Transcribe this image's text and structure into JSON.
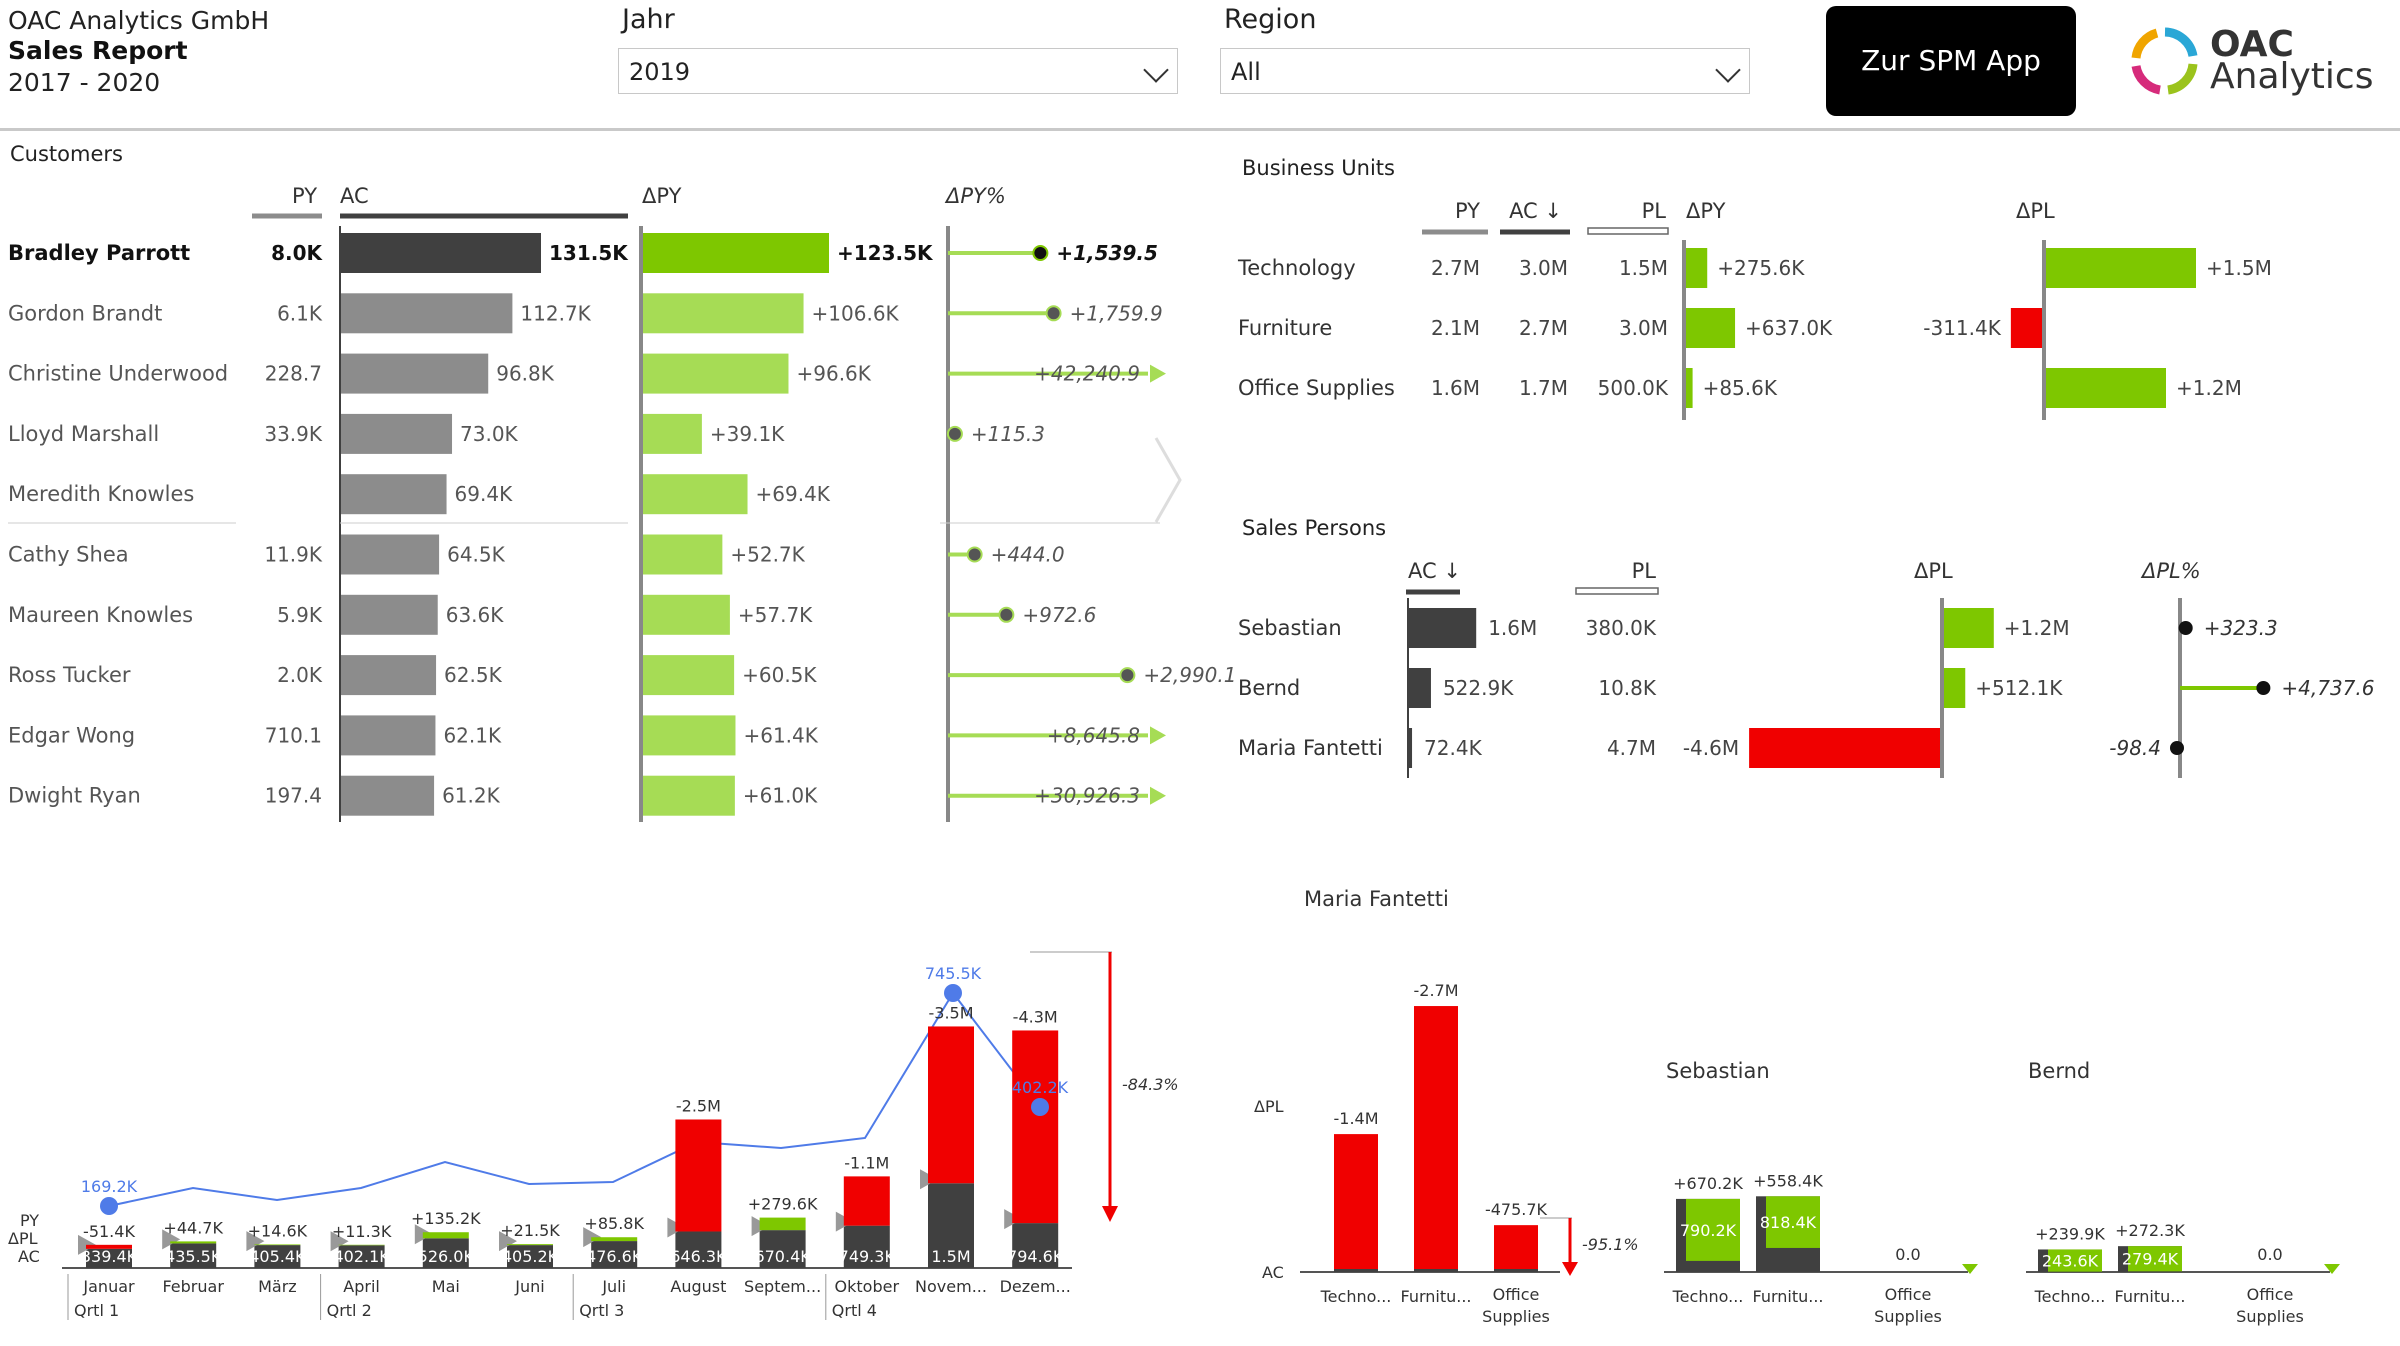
{
  "header": {
    "company": "OAC Analytics GmbH",
    "report": "Sales Report",
    "years": "2017 - 2020",
    "button": "Zur SPM App",
    "logo_line1": "OAC",
    "logo_line2": "Analytics"
  },
  "filters": {
    "jahr": {
      "label": "Jahr",
      "value": "2019"
    },
    "region": {
      "label": "Region",
      "value": "All"
    }
  },
  "colors": {
    "ac": "#404040",
    "py": "#8c8c8c",
    "good": "#7ec700",
    "good_light": "#a6dc55",
    "bad": "#f00000",
    "marker": "#4f7be8"
  },
  "customers": {
    "title": "Customers",
    "headers": {
      "py": "PY",
      "ac": "AC",
      "dpy": "ΔPY",
      "dpypct": "ΔPY%"
    },
    "rows": [
      {
        "name": "Bradley Parrott",
        "py": "8.0K",
        "ac": 131.5,
        "ac_label": "131.5K",
        "dpy": 123.5,
        "dpy_label": "+123.5K",
        "pct": 1539.5,
        "pct_label": "+1,539.5",
        "bold": true
      },
      {
        "name": "Gordon Brandt",
        "py": "6.1K",
        "ac": 112.7,
        "ac_label": "112.7K",
        "dpy": 106.6,
        "dpy_label": "+106.6K",
        "pct": 1759.9,
        "pct_label": "+1,759.9"
      },
      {
        "name": "Christine Underwood",
        "py": "228.7",
        "ac": 96.8,
        "ac_label": "96.8K",
        "dpy": 96.6,
        "dpy_label": "+96.6K",
        "pct": 42240.9,
        "pct_label": "+42,240.9"
      },
      {
        "name": "Lloyd Marshall",
        "py": "33.9K",
        "ac": 73.0,
        "ac_label": "73.0K",
        "dpy": 39.1,
        "dpy_label": "+39.1K",
        "pct": 115.3,
        "pct_label": "+115.3"
      },
      {
        "name": "Meredith Knowles",
        "py": "",
        "ac": 69.4,
        "ac_label": "69.4K",
        "dpy": 69.4,
        "dpy_label": "+69.4K",
        "pct": null,
        "pct_label": ""
      },
      {
        "name": "Cathy Shea",
        "py": "11.9K",
        "ac": 64.5,
        "ac_label": "64.5K",
        "dpy": 52.7,
        "dpy_label": "+52.7K",
        "pct": 444.0,
        "pct_label": "+444.0"
      },
      {
        "name": "Maureen Knowles",
        "py": "5.9K",
        "ac": 63.6,
        "ac_label": "63.6K",
        "dpy": 57.7,
        "dpy_label": "+57.7K",
        "pct": 972.6,
        "pct_label": "+972.6"
      },
      {
        "name": "Ross Tucker",
        "py": "2.0K",
        "ac": 62.5,
        "ac_label": "62.5K",
        "dpy": 60.5,
        "dpy_label": "+60.5K",
        "pct": 2990.1,
        "pct_label": "+2,990.1"
      },
      {
        "name": "Edgar Wong",
        "py": "710.1",
        "ac": 62.1,
        "ac_label": "62.1K",
        "dpy": 61.4,
        "dpy_label": "+61.4K",
        "pct": 8645.8,
        "pct_label": "+8,645.8"
      },
      {
        "name": "Dwight Ryan",
        "py": "197.4",
        "ac": 61.2,
        "ac_label": "61.2K",
        "dpy": 61.0,
        "dpy_label": "+61.0K",
        "pct": 30926.3,
        "pct_label": "+30,926.3"
      }
    ]
  },
  "business_units": {
    "title": "Business Units",
    "headers": {
      "py": "PY",
      "ac": "AC ↓",
      "pl": "PL",
      "dpy": "ΔPY",
      "dpl": "ΔPL"
    },
    "rows": [
      {
        "name": "Technology",
        "py": "2.7M",
        "ac": "3.0M",
        "pl": "1.5M",
        "dpy": 275.6,
        "dpy_label": "+275.6K",
        "dpl": 1500,
        "dpl_label": "+1.5M"
      },
      {
        "name": "Furniture",
        "py": "2.1M",
        "ac": "2.7M",
        "pl": "3.0M",
        "dpy": 637.0,
        "dpy_label": "+637.0K",
        "dpl": -311.4,
        "dpl_label": "-311.4K"
      },
      {
        "name": "Office Supplies",
        "py": "1.6M",
        "ac": "1.7M",
        "pl": "500.0K",
        "dpy": 85.6,
        "dpy_label": "+85.6K",
        "dpl": 1200,
        "dpl_label": "+1.2M"
      }
    ]
  },
  "sales_persons": {
    "title": "Sales Persons",
    "headers": {
      "ac": "AC ↓",
      "pl": "PL",
      "dpl": "ΔPL",
      "dplpct": "ΔPL%"
    },
    "rows": [
      {
        "name": "Sebastian",
        "ac": 1600,
        "ac_label": "1.6M",
        "pl": "380.0K",
        "dpl": 1200,
        "dpl_label": "+1.2M",
        "pct": 323.3,
        "pct_label": "+323.3"
      },
      {
        "name": "Bernd",
        "ac": 522.9,
        "ac_label": "522.9K",
        "pl": "10.8K",
        "dpl": 512.1,
        "dpl_label": "+512.1K",
        "pct": 4737.6,
        "pct_label": "+4,737.6"
      },
      {
        "name": "Maria Fantetti",
        "ac": 72.4,
        "ac_label": "72.4K",
        "pl": "4.7M",
        "dpl": -4600,
        "dpl_label": "-4.6M",
        "pct": -98.4,
        "pct_label": "-98.4"
      }
    ]
  },
  "chart_data": [
    {
      "type": "bar",
      "title": "",
      "row_labels": {
        "py": "PY",
        "dpl": "ΔPL",
        "ac": "AC"
      },
      "total_label": "-84.3%",
      "categories": [
        "Januar",
        "Februar",
        "März",
        "April",
        "Mai",
        "Juni",
        "Juli",
        "August",
        "Septem...",
        "Oktober",
        "Novem...",
        "Dezem..."
      ],
      "quarters": [
        "Qrtl 1",
        "Qrtl 2",
        "Qrtl 3",
        "Qrtl 4"
      ],
      "series": [
        {
          "name": "AC",
          "values": [
            339.4,
            435.5,
            405.4,
            402.1,
            526.0,
            405.2,
            476.6,
            646.3,
            670.4,
            749.3,
            1500,
            794.6
          ],
          "labels": [
            "339.4K",
            "435.5K",
            "405.4K",
            "402.1K",
            "526.0K",
            "405.2K",
            "476.6K",
            "646.3K",
            "670.4K",
            "749.3K",
            "1.5M",
            "794.6K"
          ]
        },
        {
          "name": "ΔPL",
          "values": [
            -51.4,
            44.7,
            14.6,
            11.3,
            135.2,
            21.5,
            85.8,
            -2500,
            279.6,
            -1100,
            -3500,
            -4300
          ],
          "labels": [
            "-51.4K",
            "+44.7K",
            "+14.6K",
            "+11.3K",
            "+135.2K",
            "+21.5K",
            "+85.8K",
            "-2.5M",
            "+279.6K",
            "-1.1M",
            "-3.5M",
            "-4.3M"
          ]
        },
        {
          "name": "PY",
          "values": [
            169.2,
            null,
            null,
            null,
            null,
            null,
            null,
            null,
            null,
            null,
            745.5,
            402.2
          ],
          "labels": [
            "169.2K",
            "",
            "",
            "",
            "",
            "",
            "",
            "",
            "",
            "",
            "745.5K",
            "402.2K"
          ]
        }
      ]
    },
    {
      "type": "bar",
      "title": "Maria Fantetti",
      "row_labels": {
        "dpl": "ΔPL",
        "ac": "AC"
      },
      "total_label": "-95.1%",
      "categories": [
        "Techno...",
        "Furnitu...",
        "Office Supplies"
      ],
      "series": [
        {
          "name": "ΔPL",
          "values": [
            -1400,
            -2700,
            -475.7
          ],
          "labels": [
            "-1.4M",
            "-2.7M",
            "-475.7K"
          ]
        }
      ]
    },
    {
      "type": "bar",
      "title": "Sebastian",
      "categories": [
        "Techno...",
        "Furnitu...",
        "Office Supplies"
      ],
      "series": [
        {
          "name": "AC",
          "values": [
            790.2,
            818.4,
            0
          ],
          "labels": [
            "790.2K",
            "818.4K",
            "0.0"
          ]
        },
        {
          "name": "ΔPL",
          "values": [
            670.2,
            558.4,
            null
          ],
          "labels": [
            "+670.2K",
            "+558.4K",
            ""
          ]
        }
      ]
    },
    {
      "type": "bar",
      "title": "Bernd",
      "categories": [
        "Techno...",
        "Furnitu...",
        "Office Supplies"
      ],
      "series": [
        {
          "name": "AC",
          "values": [
            243.6,
            279.4,
            0
          ],
          "labels": [
            "243.6K",
            "279.4K",
            "0.0"
          ]
        },
        {
          "name": "ΔPL",
          "values": [
            239.9,
            272.3,
            null
          ],
          "labels": [
            "+239.9K",
            "+272.3K",
            ""
          ]
        }
      ]
    }
  ]
}
